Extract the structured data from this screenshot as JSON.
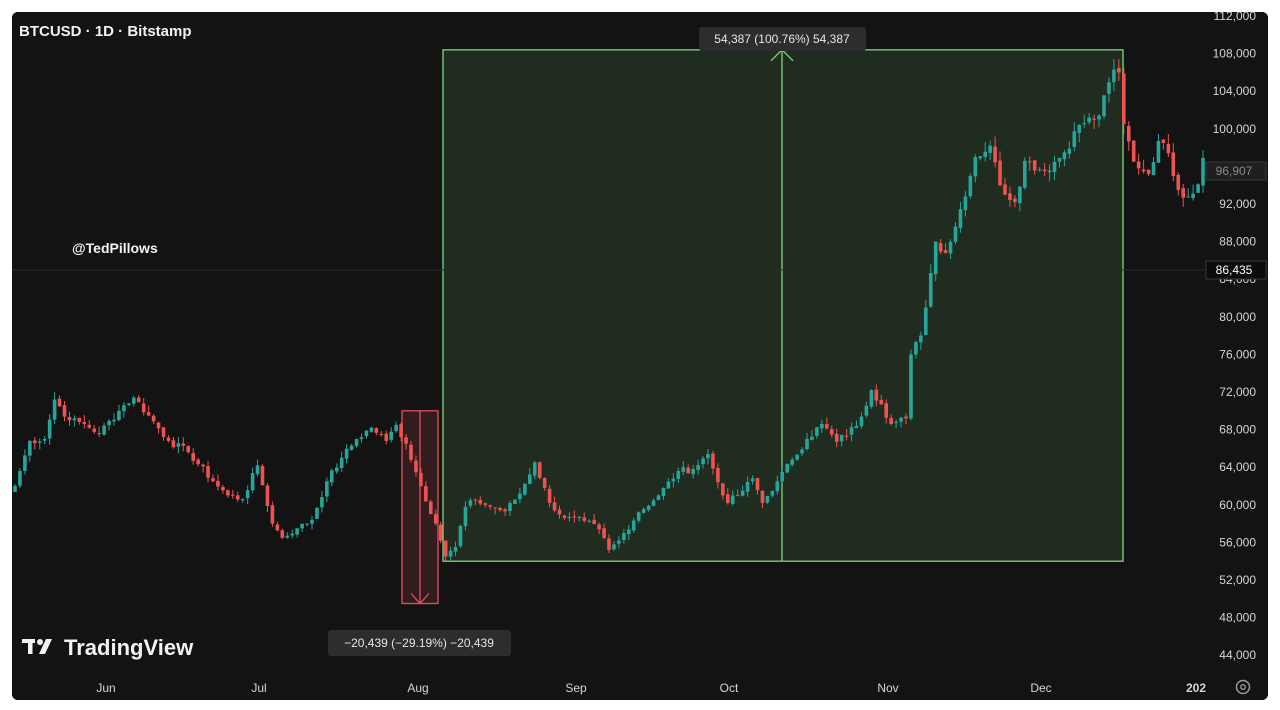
{
  "header": {
    "symbol_title": "BTCUSD · 1D · Bitstamp"
  },
  "watermark": {
    "author": "@TedPillows",
    "brand": "TradingView"
  },
  "chart_data": {
    "type": "candlestick",
    "x_labels": [
      "Jun",
      "Jul",
      "Aug",
      "Sep",
      "Oct",
      "Nov",
      "Dec",
      "202"
    ],
    "y_ticks": [
      "112,000",
      "108,000",
      "104,000",
      "100,000",
      "96,000",
      "92,000",
      "88,000",
      "84,000",
      "80,000",
      "76,000",
      "72,000",
      "68,000",
      "64,000",
      "60,000",
      "56,000",
      "52,000",
      "48,000",
      "44,000"
    ],
    "ylim": [
      44000,
      112000
    ],
    "price_tags": {
      "current": "96,907",
      "crosshair": "86,435"
    },
    "measure_up": {
      "label": "54,387 (100.76%) 54,387",
      "from": 54000,
      "to": 108400,
      "color": "#7ed67a"
    },
    "measure_down": {
      "label": "−20,439 (−29.19%) −20,439",
      "from": 70000,
      "to": 49500,
      "color": "#e0505a"
    },
    "colors": {
      "up": "#26a69a",
      "down": "#ef5350",
      "background": "#131313"
    },
    "anchors": [
      [
        0,
        62000
      ],
      [
        3,
        66800
      ],
      [
        6,
        67000
      ],
      [
        8,
        71200
      ],
      [
        11,
        69000
      ],
      [
        14,
        68600
      ],
      [
        17,
        67600
      ],
      [
        22,
        70600
      ],
      [
        24,
        71400
      ],
      [
        27,
        69500
      ],
      [
        31,
        66800
      ],
      [
        35,
        65600
      ],
      [
        40,
        62500
      ],
      [
        43,
        61000
      ],
      [
        46,
        60600
      ],
      [
        49,
        64200
      ],
      [
        52,
        58000
      ],
      [
        54,
        56500
      ],
      [
        57,
        57500
      ],
      [
        60,
        58400
      ],
      [
        63,
        62500
      ],
      [
        66,
        65000
      ],
      [
        69,
        67000
      ],
      [
        72,
        68200
      ],
      [
        75,
        66800
      ],
      [
        77,
        68500
      ],
      [
        79,
        66500
      ],
      [
        82,
        62000
      ],
      [
        85,
        58000
      ],
      [
        87,
        54500
      ],
      [
        89,
        55500
      ],
      [
        91,
        59800
      ],
      [
        93,
        60500
      ],
      [
        96,
        59800
      ],
      [
        99,
        59300
      ],
      [
        102,
        61200
      ],
      [
        105,
        64500
      ],
      [
        108,
        60200
      ],
      [
        111,
        58600
      ],
      [
        115,
        58300
      ],
      [
        118,
        57400
      ],
      [
        120,
        55200
      ],
      [
        122,
        56200
      ],
      [
        126,
        59200
      ],
      [
        130,
        61000
      ],
      [
        134,
        63600
      ],
      [
        137,
        63800
      ],
      [
        140,
        65400
      ],
      [
        142,
        62400
      ],
      [
        144,
        60200
      ],
      [
        147,
        61500
      ],
      [
        149,
        62800
      ],
      [
        151,
        60200
      ],
      [
        154,
        62500
      ],
      [
        157,
        64800
      ],
      [
        160,
        67000
      ],
      [
        163,
        68600
      ],
      [
        166,
        66700
      ],
      [
        170,
        68400
      ],
      [
        173,
        72200
      ],
      [
        175,
        70700
      ],
      [
        177,
        68600
      ],
      [
        180,
        69200
      ],
      [
        181,
        76000
      ],
      [
        183,
        78000
      ],
      [
        186,
        88000
      ],
      [
        188,
        86800
      ],
      [
        190,
        89600
      ],
      [
        194,
        97000
      ],
      [
        197,
        98200
      ],
      [
        199,
        94000
      ],
      [
        202,
        92200
      ],
      [
        204,
        96600
      ],
      [
        208,
        95500
      ],
      [
        212,
        97500
      ],
      [
        215,
        100400
      ],
      [
        219,
        101400
      ],
      [
        222,
        106300
      ],
      [
        223,
        106000
      ],
      [
        224,
        100500
      ],
      [
        226,
        96500
      ],
      [
        229,
        95200
      ],
      [
        231,
        98700
      ],
      [
        233,
        97400
      ],
      [
        235,
        93500
      ],
      [
        237,
        92800
      ],
      [
        239,
        94100
      ],
      [
        240,
        96900
      ]
    ]
  }
}
